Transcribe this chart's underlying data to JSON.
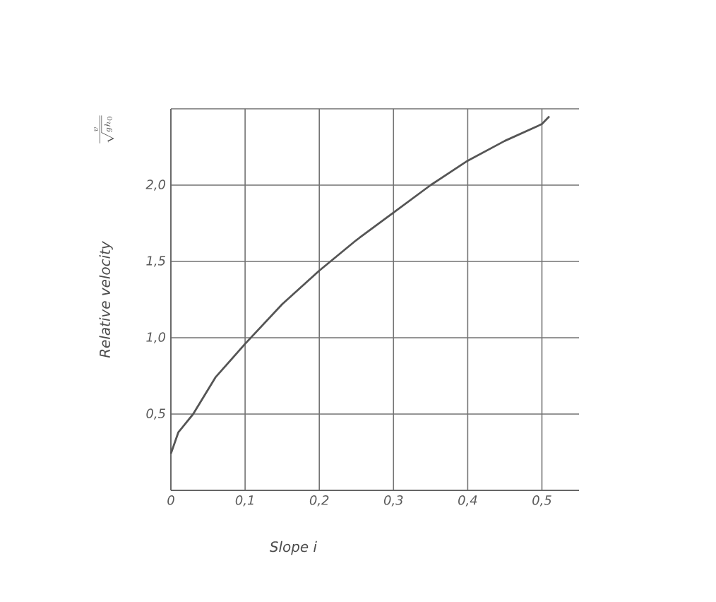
{
  "chart_data": {
    "type": "line",
    "xlabel": "Slope *i*",
    "ylabel": "Relative velocity",
    "annotations": [
      "\\frac{v}{\\sqrt{g h_0}}"
    ],
    "x": [
      0,
      0.01,
      0.03,
      0.06,
      0.1,
      0.15,
      0.2,
      0.25,
      0.3,
      0.35,
      0.4,
      0.45,
      0.5,
      0.51
    ],
    "series": [
      {
        "color": "#555555",
        "values": [
          0.24,
          0.38,
          0.5,
          0.74,
          0.96,
          1.22,
          1.44,
          1.64,
          1.82,
          2.0,
          2.16,
          2.29,
          2.4,
          2.45
        ]
      }
    ],
    "xlim": [
      0,
      0.55
    ],
    "ylim": [
      0,
      2.5
    ],
    "xticks": [
      {
        "value": 0,
        "label": "0"
      },
      {
        "value": 0.1,
        "label": "0,1"
      },
      {
        "value": 0.2,
        "label": "0,2"
      },
      {
        "value": 0.3,
        "label": "0,3"
      },
      {
        "value": 0.4,
        "label": "0,4"
      },
      {
        "value": 0.5,
        "label": "0,5"
      }
    ],
    "yticks": [
      {
        "value": 0,
        "label": null
      },
      {
        "value": 0.5,
        "label": "0,5"
      },
      {
        "value": 1.0,
        "label": "1,0"
      },
      {
        "value": 1.5,
        "label": "1,5"
      },
      {
        "value": 2.0,
        "label": "2,0"
      },
      {
        "value": 2.5,
        "label": null
      }
    ],
    "grid": true,
    "marker": "none",
    "line_style": "solid"
  }
}
